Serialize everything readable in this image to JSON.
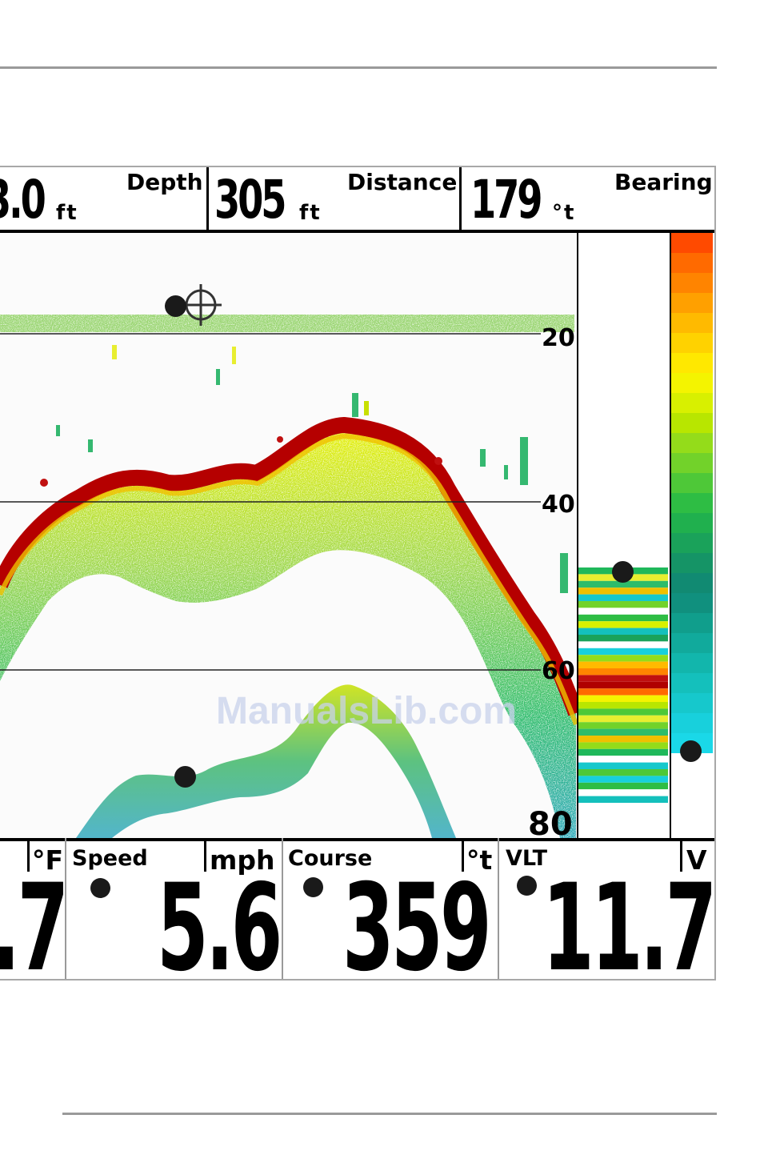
{
  "top_bar": {
    "cells": [
      {
        "value": "3.0",
        "unit": "ft",
        "label": "Depth"
      },
      {
        "value": "305",
        "unit": "ft",
        "label": "Distance"
      },
      {
        "value": "179",
        "unit": "°t",
        "label": "Bearing"
      }
    ]
  },
  "depth_scale": {
    "ticks": [
      "20",
      "40",
      "60",
      "80"
    ]
  },
  "bottom_bar": {
    "cells": [
      {
        "label": "",
        "unit": "°F",
        "value": ".7"
      },
      {
        "label": "Speed",
        "unit": "mph",
        "value": "5.6"
      },
      {
        "label": "Course",
        "unit": "°t",
        "value": "359"
      },
      {
        "label": "VLT",
        "unit": "V",
        "value": "11.7"
      }
    ]
  },
  "watermark": "ManualsLib.com",
  "colors": {
    "frame": "#a8a8a8",
    "bottom_return": "#b40000",
    "color_bar_top": "#ff5500",
    "color_bar_bottom": "#00e0ff"
  },
  "icons": {
    "cursor": "crosshair-cursor-icon"
  }
}
